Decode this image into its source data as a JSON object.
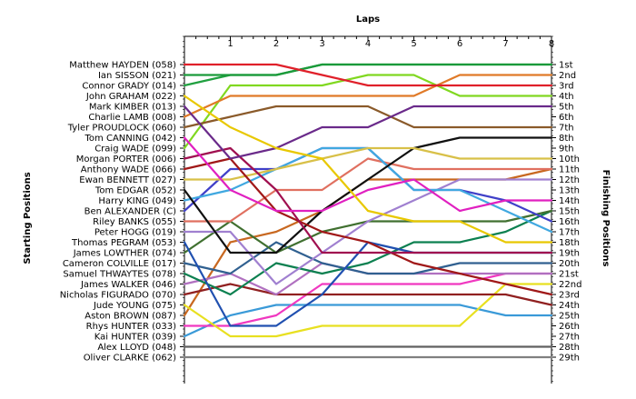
{
  "chart_data": {
    "type": "line",
    "title": "Laps",
    "ylabel_left": "Starting Positions",
    "ylabel_right": "Finishing Positions",
    "x": [
      0,
      1,
      2,
      3,
      4,
      5,
      6,
      7,
      8
    ],
    "x_tick_labels": [
      "1",
      "2",
      "3",
      "4",
      "5",
      "6",
      "7",
      "8"
    ],
    "drivers": [
      "Matthew HAYDEN (058)",
      "Ian SISSON (021)",
      "Connor GRADY (014)",
      "John GRAHAM (022)",
      "Mark KIMBER (013)",
      "Charlie LAMB (008)",
      "Tyler PROUDLOCK (060)",
      "Tom CANNING (042)",
      "Craig WADE (099)",
      "Morgan PORTER (006)",
      "Anthony WADE (066)",
      "Ewan BENNETT (027)",
      "Tom EDGAR (052)",
      "Harry KING (049)",
      "Ben ALEXANDER (C)",
      "Riley BANKS (055)",
      "Peter HOGG (019)",
      "Thomas PEGRAM (053)",
      "James LOWTHER (074)",
      "Cameron COLVILLE (017)",
      "Samuel THWAYTES (078)",
      "James WALKER (046)",
      "Nicholas FIGURADO (070)",
      "Jude YOUNG (075)",
      "Aston BROWN (087)",
      "Rhys HUNTER (033)",
      "Kai HUNTER (039)",
      "Alex LLOYD (048)",
      "Oliver CLARKE (062)"
    ],
    "finishing_labels": [
      "1st",
      "2nd",
      "3rd",
      "4th",
      "5th",
      "6th",
      "7th",
      "8th",
      "9th",
      "10th",
      "11th",
      "12th",
      "13th",
      "14th",
      "15th",
      "16th",
      "17th",
      "18th",
      "19th",
      "20th",
      "21st",
      "22nd",
      "23rd",
      "24th",
      "25th",
      "26th",
      "27th",
      "28th",
      "29th"
    ],
    "ylim": [
      1,
      29
    ],
    "series": [
      {
        "color": "#e0202a",
        "values": [
          1,
          1,
          1,
          2,
          3,
          3,
          3,
          3,
          3
        ]
      },
      {
        "color": "#1a9a3a",
        "values": [
          2,
          2,
          2,
          1,
          1,
          1,
          1,
          1,
          1
        ]
      },
      {
        "color": "#20a040",
        "values": [
          3,
          2,
          2,
          1,
          1,
          1,
          1,
          1,
          1
        ]
      },
      {
        "color": "#e8c800",
        "values": [
          4,
          7,
          9,
          10,
          15,
          16,
          16,
          18,
          18
        ]
      },
      {
        "color": "#6a2a8a",
        "values": [
          5,
          10,
          9,
          7,
          7,
          5,
          5,
          5,
          5
        ]
      },
      {
        "color": "#e07a28",
        "values": [
          6,
          4,
          4,
          4,
          4,
          4,
          2,
          2,
          2
        ]
      },
      {
        "color": "#8a5a2a",
        "values": [
          7,
          6,
          5,
          5,
          5,
          7,
          7,
          7,
          7
        ]
      },
      {
        "color": "#e020c0",
        "values": [
          8,
          13,
          15,
          15,
          13,
          12,
          15,
          14,
          14
        ]
      },
      {
        "color": "#80d820",
        "values": [
          9,
          3,
          3,
          3,
          2,
          2,
          4,
          4,
          4
        ]
      },
      {
        "color": "#a01050",
        "values": [
          10,
          9,
          13,
          19,
          19,
          19,
          19,
          19,
          19
        ]
      },
      {
        "color": "#a01818",
        "values": [
          11,
          10,
          15,
          17,
          18,
          20,
          21,
          22,
          23
        ]
      },
      {
        "color": "#d8c048",
        "values": [
          12,
          12,
          11,
          10,
          9,
          9,
          10,
          10,
          10
        ]
      },
      {
        "color": "#101010",
        "values": [
          13,
          19,
          19,
          15,
          12,
          9,
          8,
          8,
          8
        ]
      },
      {
        "color": "#40a8e0",
        "values": [
          14,
          13,
          11,
          9,
          9,
          13,
          13,
          15,
          17
        ]
      },
      {
        "color": "#4040c8",
        "values": [
          15,
          11,
          11,
          9,
          9,
          13,
          13,
          14,
          16
        ]
      },
      {
        "color": "#e07060",
        "values": [
          16,
          16,
          13,
          13,
          10,
          11,
          11,
          11,
          11
        ]
      },
      {
        "color": "#a080d0",
        "values": [
          17,
          17,
          22,
          19,
          16,
          14,
          12,
          12,
          12
        ]
      },
      {
        "color": "#2050b0",
        "values": [
          18,
          26,
          26,
          23,
          18,
          19,
          19,
          19,
          19
        ]
      },
      {
        "color": "#407030",
        "values": [
          19,
          16,
          19,
          17,
          16,
          16,
          16,
          16,
          15
        ]
      },
      {
        "color": "#306090",
        "values": [
          20,
          21,
          18,
          20,
          21,
          21,
          20,
          20,
          20
        ]
      },
      {
        "color": "#0c8050",
        "values": [
          21,
          23,
          20,
          21,
          20,
          18,
          18,
          17,
          15
        ]
      },
      {
        "color": "#b070c0",
        "values": [
          22,
          21,
          23,
          20,
          21,
          21,
          21,
          21,
          21
        ]
      },
      {
        "color": "#902020",
        "values": [
          23,
          22,
          23,
          23,
          23,
          23,
          23,
          23,
          24
        ]
      },
      {
        "color": "#e8e020",
        "values": [
          24,
          27,
          27,
          26,
          26,
          26,
          26,
          22,
          22
        ]
      },
      {
        "color": "#c86820",
        "values": [
          25,
          18,
          17,
          15,
          12,
          12,
          12,
          12,
          11
        ]
      },
      {
        "color": "#f038c0",
        "values": [
          26,
          26,
          25,
          22,
          22,
          22,
          22,
          21,
          21
        ]
      },
      {
        "color": "#3a9ad8",
        "values": [
          27,
          25,
          24,
          24,
          24,
          24,
          24,
          25,
          25
        ]
      },
      {
        "color": "#606060",
        "values": [
          28,
          28,
          28,
          28,
          28,
          28,
          28,
          28,
          28
        ]
      },
      {
        "color": "#808080",
        "values": [
          29,
          29,
          29,
          29,
          29,
          29,
          29,
          29,
          29
        ]
      }
    ],
    "grid": false
  }
}
